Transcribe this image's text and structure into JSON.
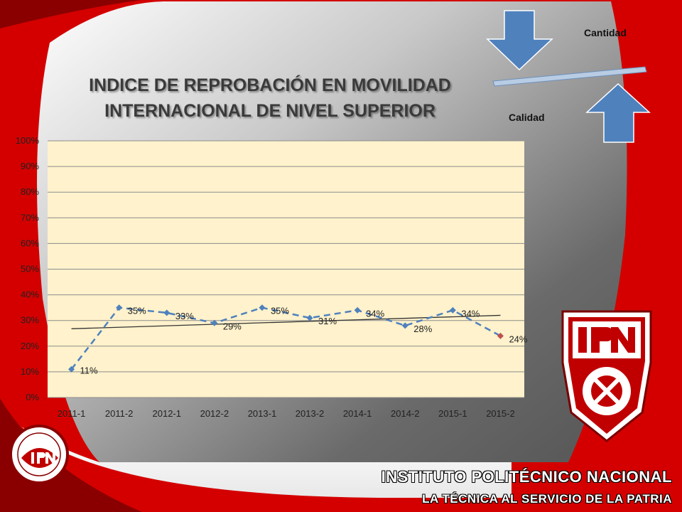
{
  "colors": {
    "red": "#d00000",
    "plot_bg": "#fff2cc",
    "series": "#4f81bd",
    "last_point": "#c0504d",
    "trend": "#333333"
  },
  "chart_data": {
    "type": "line",
    "title": "INDICE DE REPROBACIÓN EN MOVILIDAD INTERNACIONAL DE NIVEL SUPERIOR",
    "title_lines": [
      "INDICE DE REPROBACIÓN EN MOVILIDAD",
      "INTERNACIONAL DE NIVEL SUPERIOR"
    ],
    "categories": [
      "2011-1",
      "2011-2",
      "2012-1",
      "2012-2",
      "2013-1",
      "2013-2",
      "2014-1",
      "2014-2",
      "2015-1",
      "2015-2"
    ],
    "values": [
      11,
      35,
      33,
      29,
      35,
      31,
      34,
      28,
      34,
      24
    ],
    "data_labels": [
      "11%",
      "35%",
      "33%",
      "29%",
      "35%",
      "31%",
      "34%",
      "28%",
      "34%",
      "24%"
    ],
    "y_ticks": [
      "0%",
      "10%",
      "20%",
      "30%",
      "40%",
      "50%",
      "60%",
      "70%",
      "80%",
      "90%",
      "100%"
    ],
    "ylim": [
      0,
      100
    ],
    "line_style": "dashed",
    "marker": "diamond",
    "trendline": "linear",
    "grid": true,
    "xlabel": "",
    "ylabel": ""
  },
  "annotations": {
    "cantidad": "Cantidad",
    "calidad": "Calidad"
  },
  "footer": {
    "institution": "INSTITUTO POLITÉCNICO NACIONAL",
    "motto": "LA TÉCNICA AL SERVICIO DE LA PATRIA"
  },
  "logos": {
    "main": "ipn-logo",
    "small": "cca-ipn-logo"
  }
}
